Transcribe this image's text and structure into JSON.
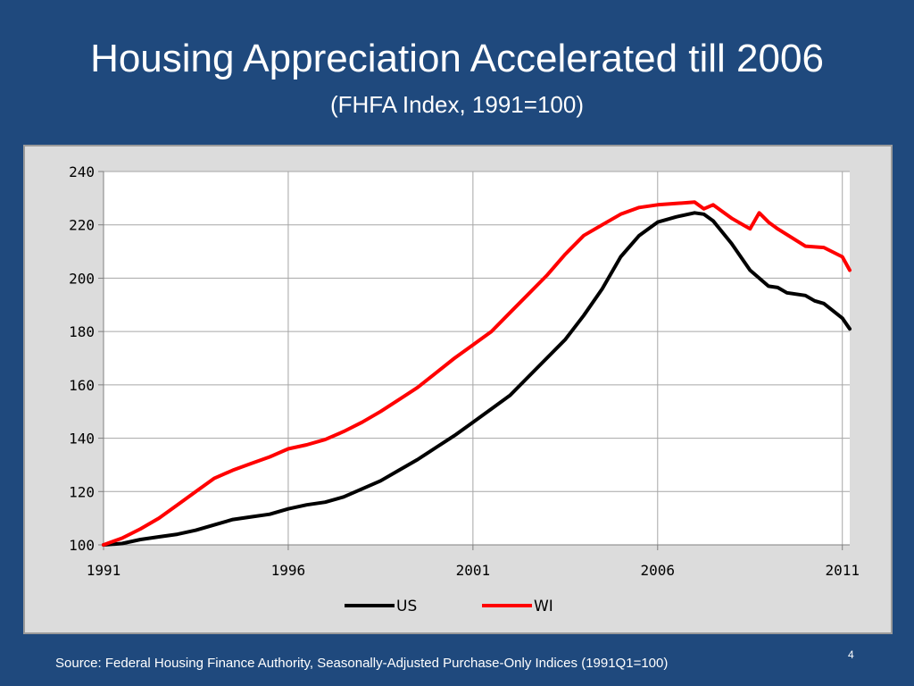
{
  "slide": {
    "title": "Housing Appreciation Accelerated till 2006",
    "subtitle": "(FHFA Index, 1991=100)",
    "source": "Source: Federal Housing Finance Authority, Seasonally-Adjusted Purchase-Only Indices (1991Q1=100)",
    "page_number": "4"
  },
  "colors": {
    "background": "#1f497d",
    "frame": "#dcdcdc",
    "plot": "#ffffff",
    "grid": "#a6a6a6"
  },
  "chart_data": {
    "type": "line",
    "title": "",
    "xlabel": "",
    "ylabel": "",
    "xlim": [
      1991,
      2011.2
    ],
    "ylim": [
      100,
      240
    ],
    "x_ticks": [
      1991,
      1996,
      2001,
      2006,
      2011
    ],
    "x_tick_labels": [
      "1991",
      "1996",
      "2001",
      "2006",
      "2011"
    ],
    "y_ticks": [
      100,
      120,
      140,
      160,
      180,
      200,
      220,
      240
    ],
    "y_tick_labels": [
      "100",
      "120",
      "140",
      "160",
      "180",
      "200",
      "220",
      "240"
    ],
    "grid": true,
    "legend": "bottom-center",
    "series": [
      {
        "name": "US",
        "color": "#000000",
        "x": [
          1991,
          1991.5,
          1992,
          1992.5,
          1993,
          1993.5,
          1994,
          1994.5,
          1995,
          1995.5,
          1996,
          1996.5,
          1997,
          1997.5,
          1998,
          1998.5,
          1999,
          1999.5,
          2000,
          2000.5,
          2001,
          2001.5,
          2002,
          2002.5,
          2003,
          2003.5,
          2004,
          2004.5,
          2005,
          2005.5,
          2006,
          2006.5,
          2007,
          2007.25,
          2007.5,
          2008,
          2008.5,
          2009,
          2009.25,
          2009.5,
          2010,
          2010.25,
          2010.5,
          2011,
          2011.2
        ],
        "values": [
          100,
          100.5,
          102,
          103,
          104,
          105.5,
          107.5,
          109.5,
          110.5,
          111.5,
          113.5,
          115,
          116,
          118,
          121,
          124,
          128,
          132,
          136.5,
          141,
          146,
          151,
          156,
          163,
          170,
          177,
          186,
          196,
          208,
          216,
          221,
          223,
          224.5,
          224,
          221.5,
          213,
          203,
          197,
          196.5,
          194.5,
          193.5,
          191.5,
          190.5,
          185,
          181
        ]
      },
      {
        "name": "WI",
        "color": "#ff0000",
        "x": [
          1991,
          1991.5,
          1992,
          1992.5,
          1993,
          1993.5,
          1994,
          1994.5,
          1995,
          1995.5,
          1996,
          1996.5,
          1997,
          1997.5,
          1998,
          1998.5,
          1999,
          1999.5,
          2000,
          2000.5,
          2001,
          2001.5,
          2002,
          2002.5,
          2003,
          2003.5,
          2004,
          2004.5,
          2005,
          2005.5,
          2006,
          2006.5,
          2007,
          2007.25,
          2007.5,
          2007.75,
          2008,
          2008.5,
          2008.75,
          2009,
          2009.25,
          2010,
          2010.5,
          2011,
          2011.2
        ],
        "values": [
          100,
          102.5,
          106,
          110,
          115,
          120,
          125,
          128,
          130.5,
          133,
          136,
          137.5,
          139.5,
          142.5,
          146,
          150,
          154.5,
          159,
          164.5,
          170,
          175,
          180,
          187,
          194,
          201,
          209,
          216,
          220,
          224,
          226.5,
          227.5,
          228,
          228.5,
          226,
          227.5,
          225,
          222.5,
          218.5,
          224.5,
          221,
          218.5,
          212,
          211.5,
          208,
          203
        ]
      }
    ]
  }
}
